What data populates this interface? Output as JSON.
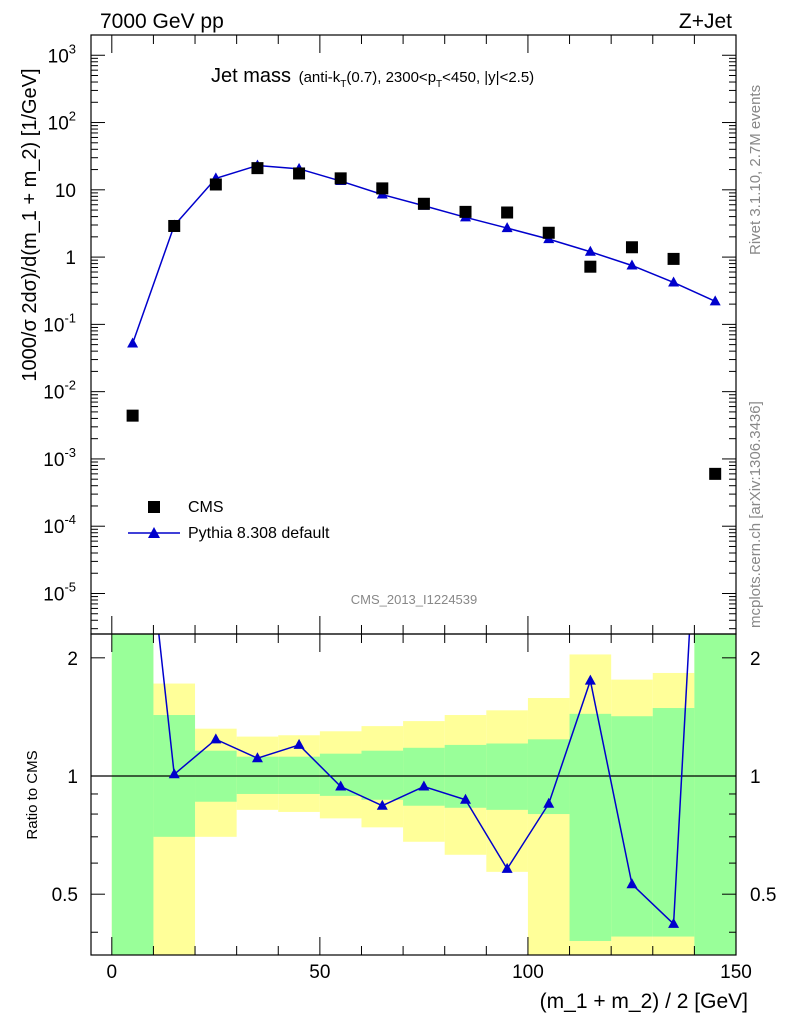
{
  "header": {
    "left": "7000 GeV pp",
    "right": "Z+Jet"
  },
  "side": {
    "version": "Rivet 3.1.10,  2.7M events",
    "source": "mcplots.cern.ch [arXiv:1306.3436]"
  },
  "analysis_id": "CMS_2013_I1224539",
  "chart_data": {
    "type": "scatter",
    "title_main": "Jet mass",
    "title_sub": "(anti-k",
    "title_sub_T": "T",
    "title_sub2": "(0.7), 2300<p",
    "title_sub_T2": "T",
    "title_sub3": "<450, |y|<2.5)",
    "ylabel": "1000/σ 2dσ)/d(m_1 + m_2) [1/GeV]",
    "xlabel": "(m_1 + m_2) / 2 [GeV]",
    "ratio_ylabel": "Ratio to CMS",
    "xlim": [
      -5,
      150
    ],
    "ylim_log": [
      2.5e-06,
      2000
    ],
    "ratio_ylim": [
      0.35,
      2.3
    ],
    "y_ticks": [
      {
        "v": 1000,
        "base": "10",
        "exp": "3"
      },
      {
        "v": 100,
        "base": "10",
        "exp": "2"
      },
      {
        "v": 10,
        "base": "10",
        "exp": ""
      },
      {
        "v": 1,
        "base": "1",
        "exp": ""
      },
      {
        "v": 0.1,
        "base": "10",
        "exp": "-1"
      },
      {
        "v": 0.01,
        "base": "10",
        "exp": "-2"
      },
      {
        "v": 0.001,
        "base": "10",
        "exp": "-3"
      },
      {
        "v": 0.0001,
        "base": "10",
        "exp": "-4"
      },
      {
        "v": 1e-05,
        "base": "10",
        "exp": "-5"
      }
    ],
    "x_ticks": [
      "0",
      "50",
      "100",
      "150"
    ],
    "ratio_ticks": [
      "0.5",
      "1",
      "2"
    ],
    "legend": [
      {
        "label": "CMS",
        "marker": "square",
        "color": "#000000"
      },
      {
        "label": "Pythia 8.308 default",
        "marker": "triangle",
        "color": "#0000cc"
      }
    ],
    "x": [
      5,
      15,
      25,
      35,
      45,
      55,
      65,
      75,
      85,
      95,
      105,
      115,
      125,
      135,
      145
    ],
    "series": [
      {
        "name": "CMS",
        "color": "#000000",
        "values": [
          0.0044,
          2.9,
          12.0,
          21.0,
          17.5,
          14.8,
          10.5,
          6.2,
          4.7,
          4.6,
          2.3,
          0.72,
          1.4,
          0.94,
          0.0006
        ]
      },
      {
        "name": "Pythia 8.308 default",
        "color": "#0000cc",
        "values": [
          0.052,
          2.95,
          14.8,
          23.0,
          20.5,
          13.5,
          8.5,
          5.8,
          3.9,
          2.7,
          1.85,
          1.2,
          0.75,
          0.42,
          0.22
        ]
      }
    ],
    "ratio": [
      null,
      1.01,
      1.24,
      1.11,
      1.2,
      0.94,
      0.84,
      0.94,
      0.87,
      0.58,
      0.85,
      1.75,
      0.53,
      0.42,
      null
    ],
    "bands": [
      {
        "x0": 0,
        "x1": 10,
        "g": [
          0.3,
          2.4
        ],
        "y": [
          0.3,
          2.4
        ]
      },
      {
        "x0": 10,
        "x1": 20,
        "g": [
          0.7,
          1.43
        ],
        "y": [
          0.3,
          1.72
        ]
      },
      {
        "x0": 20,
        "x1": 30,
        "g": [
          0.86,
          1.16
        ],
        "y": [
          0.7,
          1.32
        ]
      },
      {
        "x0": 30,
        "x1": 40,
        "g": [
          0.9,
          1.12
        ],
        "y": [
          0.82,
          1.26
        ]
      },
      {
        "x0": 40,
        "x1": 50,
        "g": [
          0.9,
          1.12
        ],
        "y": [
          0.81,
          1.27
        ]
      },
      {
        "x0": 50,
        "x1": 60,
        "g": [
          0.89,
          1.14
        ],
        "y": [
          0.78,
          1.3
        ]
      },
      {
        "x0": 60,
        "x1": 70,
        "g": [
          0.87,
          1.16
        ],
        "y": [
          0.74,
          1.34
        ]
      },
      {
        "x0": 70,
        "x1": 80,
        "g": [
          0.84,
          1.18
        ],
        "y": [
          0.68,
          1.38
        ]
      },
      {
        "x0": 80,
        "x1": 90,
        "g": [
          0.83,
          1.2
        ],
        "y": [
          0.63,
          1.43
        ]
      },
      {
        "x0": 90,
        "x1": 100,
        "g": [
          0.82,
          1.21
        ],
        "y": [
          0.57,
          1.47
        ]
      },
      {
        "x0": 100,
        "x1": 110,
        "g": [
          0.8,
          1.24
        ],
        "y": [
          0.3,
          1.58
        ]
      },
      {
        "x0": 110,
        "x1": 120,
        "g": [
          0.38,
          1.44
        ],
        "y": [
          0.3,
          2.04
        ]
      },
      {
        "x0": 120,
        "x1": 130,
        "g": [
          0.39,
          1.42
        ],
        "y": [
          0.3,
          1.76
        ]
      },
      {
        "x0": 130,
        "x1": 140,
        "g": [
          0.39,
          1.49
        ],
        "y": [
          0.3,
          1.83
        ]
      },
      {
        "x0": 140,
        "x1": 150,
        "g": [
          0.3,
          2.4
        ],
        "y": [
          0.3,
          2.4
        ]
      }
    ]
  }
}
